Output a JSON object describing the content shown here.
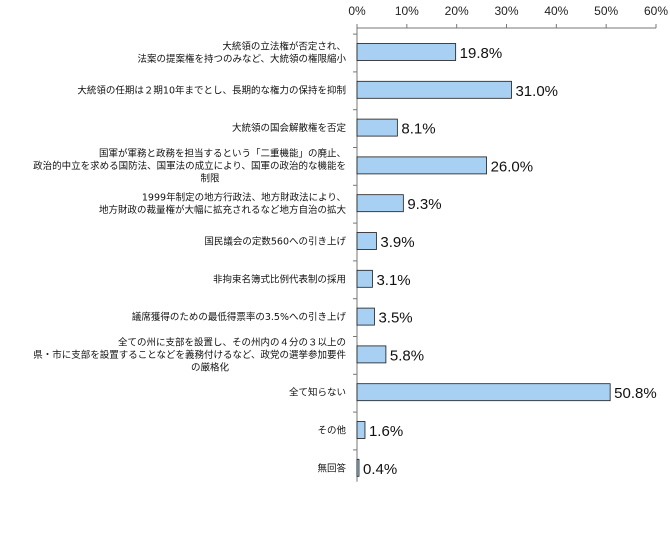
{
  "chart_data": {
    "type": "bar",
    "orientation": "horizontal",
    "categories": [
      [
        "大統領の立法権が否定され、",
        "法案の提案権を持つのみなど、大統領の権限縮小"
      ],
      [
        "大統領の任期は２期10年までとし、長期的な権力の保持を抑制"
      ],
      [
        "大統領の国会解散権を否定"
      ],
      [
        "国軍が軍務と政務を担当するという「二重機能」の廃止、",
        "政治的中立を求める国防法、国軍法の成立により、国軍の政治的な機能を",
        "制限"
      ],
      [
        "1999年制定の地方行政法、地方財政法により、",
        "地方財政の裁量権が大幅に拡充されるなど地方自治の拡大"
      ],
      [
        "国民議会の定数560への引き上げ"
      ],
      [
        "非拘束名簿式比例代表制の採用"
      ],
      [
        "議席獲得のための最低得票率の3.5%への引き上げ"
      ],
      [
        "全ての州に支部を設置し、その州内の４分の３以上の",
        "県・市に支部を設置することなどを義務付けるなど、政党の選挙参加要件",
        "の厳格化"
      ],
      [
        "全て知らない"
      ],
      [
        "その他"
      ],
      [
        "無回答"
      ]
    ],
    "values": [
      19.8,
      31.0,
      8.1,
      26.0,
      9.3,
      3.9,
      3.1,
      3.5,
      5.8,
      50.8,
      1.6,
      0.4
    ],
    "value_labels": [
      "19.8%",
      "31.0%",
      "8.1%",
      "26.0%",
      "9.3%",
      "3.9%",
      "3.1%",
      "3.5%",
      "5.8%",
      "50.8%",
      "1.6%",
      "0.4%"
    ],
    "xlim": [
      0,
      60
    ],
    "ticks": [
      0,
      10,
      20,
      30,
      40,
      50,
      60
    ],
    "tick_labels": [
      "0%",
      "10%",
      "20%",
      "30%",
      "40%",
      "50%",
      "60%"
    ],
    "axis_position": "top",
    "grid": false,
    "bar_color": "#a8d0f2",
    "bar_edge_color": "#1a1a1a"
  }
}
